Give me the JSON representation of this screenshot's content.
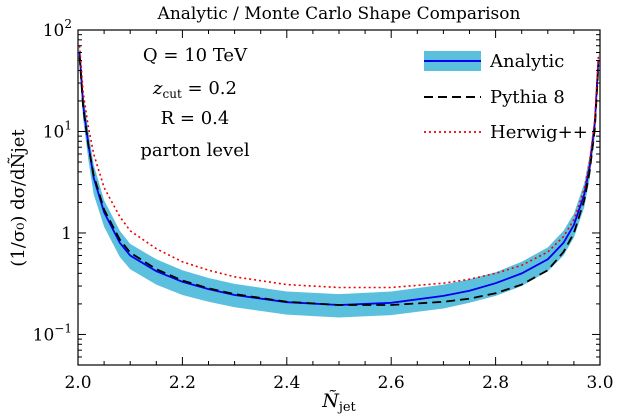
{
  "chart_data": {
    "type": "line",
    "title": "Analytic / Monte Carlo Shape Comparison",
    "xlabel_main": "Ñ",
    "xlabel_sub": "jet",
    "ylabel": "(1/σ₀) dσ/dÑjet",
    "y_scale": "log",
    "xlim": [
      2.0,
      3.0
    ],
    "ylim": [
      0.05,
      100
    ],
    "x_ticks": [
      {
        "value": 2.0,
        "label": "2.0"
      },
      {
        "value": 2.2,
        "label": "2.2"
      },
      {
        "value": 2.4,
        "label": "2.4"
      },
      {
        "value": 2.6,
        "label": "2.6"
      },
      {
        "value": 2.8,
        "label": "2.8"
      },
      {
        "value": 3.0,
        "label": "3.0"
      }
    ],
    "y_ticks": [
      {
        "value": 0.1,
        "label_base": "10",
        "label_exp": "−1"
      },
      {
        "value": 1,
        "label_base": "1",
        "label_exp": ""
      },
      {
        "value": 10,
        "label_base": "10",
        "label_exp": "1"
      },
      {
        "value": 100,
        "label_base": "10",
        "label_exp": "2"
      }
    ],
    "annotations": {
      "energy": "Q = 10 TeV",
      "zcut_sym": "z",
      "zcut_sub": "cut",
      "zcut_val": " = 0.2",
      "radius": "R = 0.4",
      "level": "parton level"
    },
    "legend_position": "top-right",
    "series": [
      {
        "name": "Analytic",
        "style": "band+solid",
        "color": "#0000ee",
        "band_color": "#5bc0de",
        "x": [
          2.003,
          2.01,
          2.02,
          2.03,
          2.05,
          2.08,
          2.1,
          2.15,
          2.2,
          2.25,
          2.3,
          2.4,
          2.5,
          2.6,
          2.7,
          2.75,
          2.8,
          2.85,
          2.9,
          2.93,
          2.95,
          2.97,
          2.98,
          2.99,
          2.997
        ],
        "y": [
          60,
          18,
          7.5,
          3.5,
          1.6,
          0.8,
          0.6,
          0.42,
          0.33,
          0.28,
          0.245,
          0.208,
          0.195,
          0.205,
          0.24,
          0.27,
          0.32,
          0.4,
          0.55,
          0.8,
          1.2,
          2.4,
          4.5,
          12,
          50
        ],
        "y_low": [
          45,
          13,
          5.2,
          2.4,
          1.15,
          0.58,
          0.44,
          0.31,
          0.245,
          0.21,
          0.185,
          0.157,
          0.147,
          0.155,
          0.18,
          0.205,
          0.24,
          0.3,
          0.42,
          0.6,
          0.9,
          1.8,
          3.4,
          9,
          38
        ],
        "y_high": [
          75,
          24,
          10,
          4.7,
          2.1,
          1.05,
          0.78,
          0.55,
          0.43,
          0.36,
          0.315,
          0.265,
          0.25,
          0.265,
          0.31,
          0.35,
          0.41,
          0.52,
          0.72,
          1.05,
          1.55,
          3.1,
          5.8,
          15,
          62
        ]
      },
      {
        "name": "Pythia 8",
        "style": "dashed",
        "color": "#000000",
        "x": [
          2.003,
          2.01,
          2.02,
          2.03,
          2.05,
          2.08,
          2.1,
          2.15,
          2.2,
          2.25,
          2.3,
          2.4,
          2.5,
          2.6,
          2.7,
          2.75,
          2.8,
          2.85,
          2.9,
          2.93,
          2.95,
          2.97,
          2.98,
          2.99,
          2.997
        ],
        "y": [
          55,
          17,
          7.2,
          3.7,
          1.7,
          0.86,
          0.64,
          0.44,
          0.34,
          0.285,
          0.25,
          0.21,
          0.195,
          0.195,
          0.21,
          0.225,
          0.255,
          0.31,
          0.43,
          0.65,
          1.0,
          2.1,
          4.0,
          10.5,
          45
        ]
      },
      {
        "name": "Herwig++",
        "style": "dotted",
        "color": "#ee0000",
        "x": [
          2.003,
          2.01,
          2.02,
          2.03,
          2.05,
          2.08,
          2.1,
          2.15,
          2.2,
          2.25,
          2.3,
          2.4,
          2.5,
          2.6,
          2.7,
          2.75,
          2.8,
          2.85,
          2.9,
          2.93,
          2.95,
          2.97,
          2.98,
          2.99,
          2.997
        ],
        "y": [
          70,
          24,
          11,
          6,
          2.8,
          1.45,
          1.05,
          0.7,
          0.52,
          0.43,
          0.37,
          0.31,
          0.29,
          0.29,
          0.32,
          0.35,
          0.4,
          0.48,
          0.65,
          0.92,
          1.35,
          2.7,
          5.0,
          13,
          55
        ]
      }
    ]
  }
}
